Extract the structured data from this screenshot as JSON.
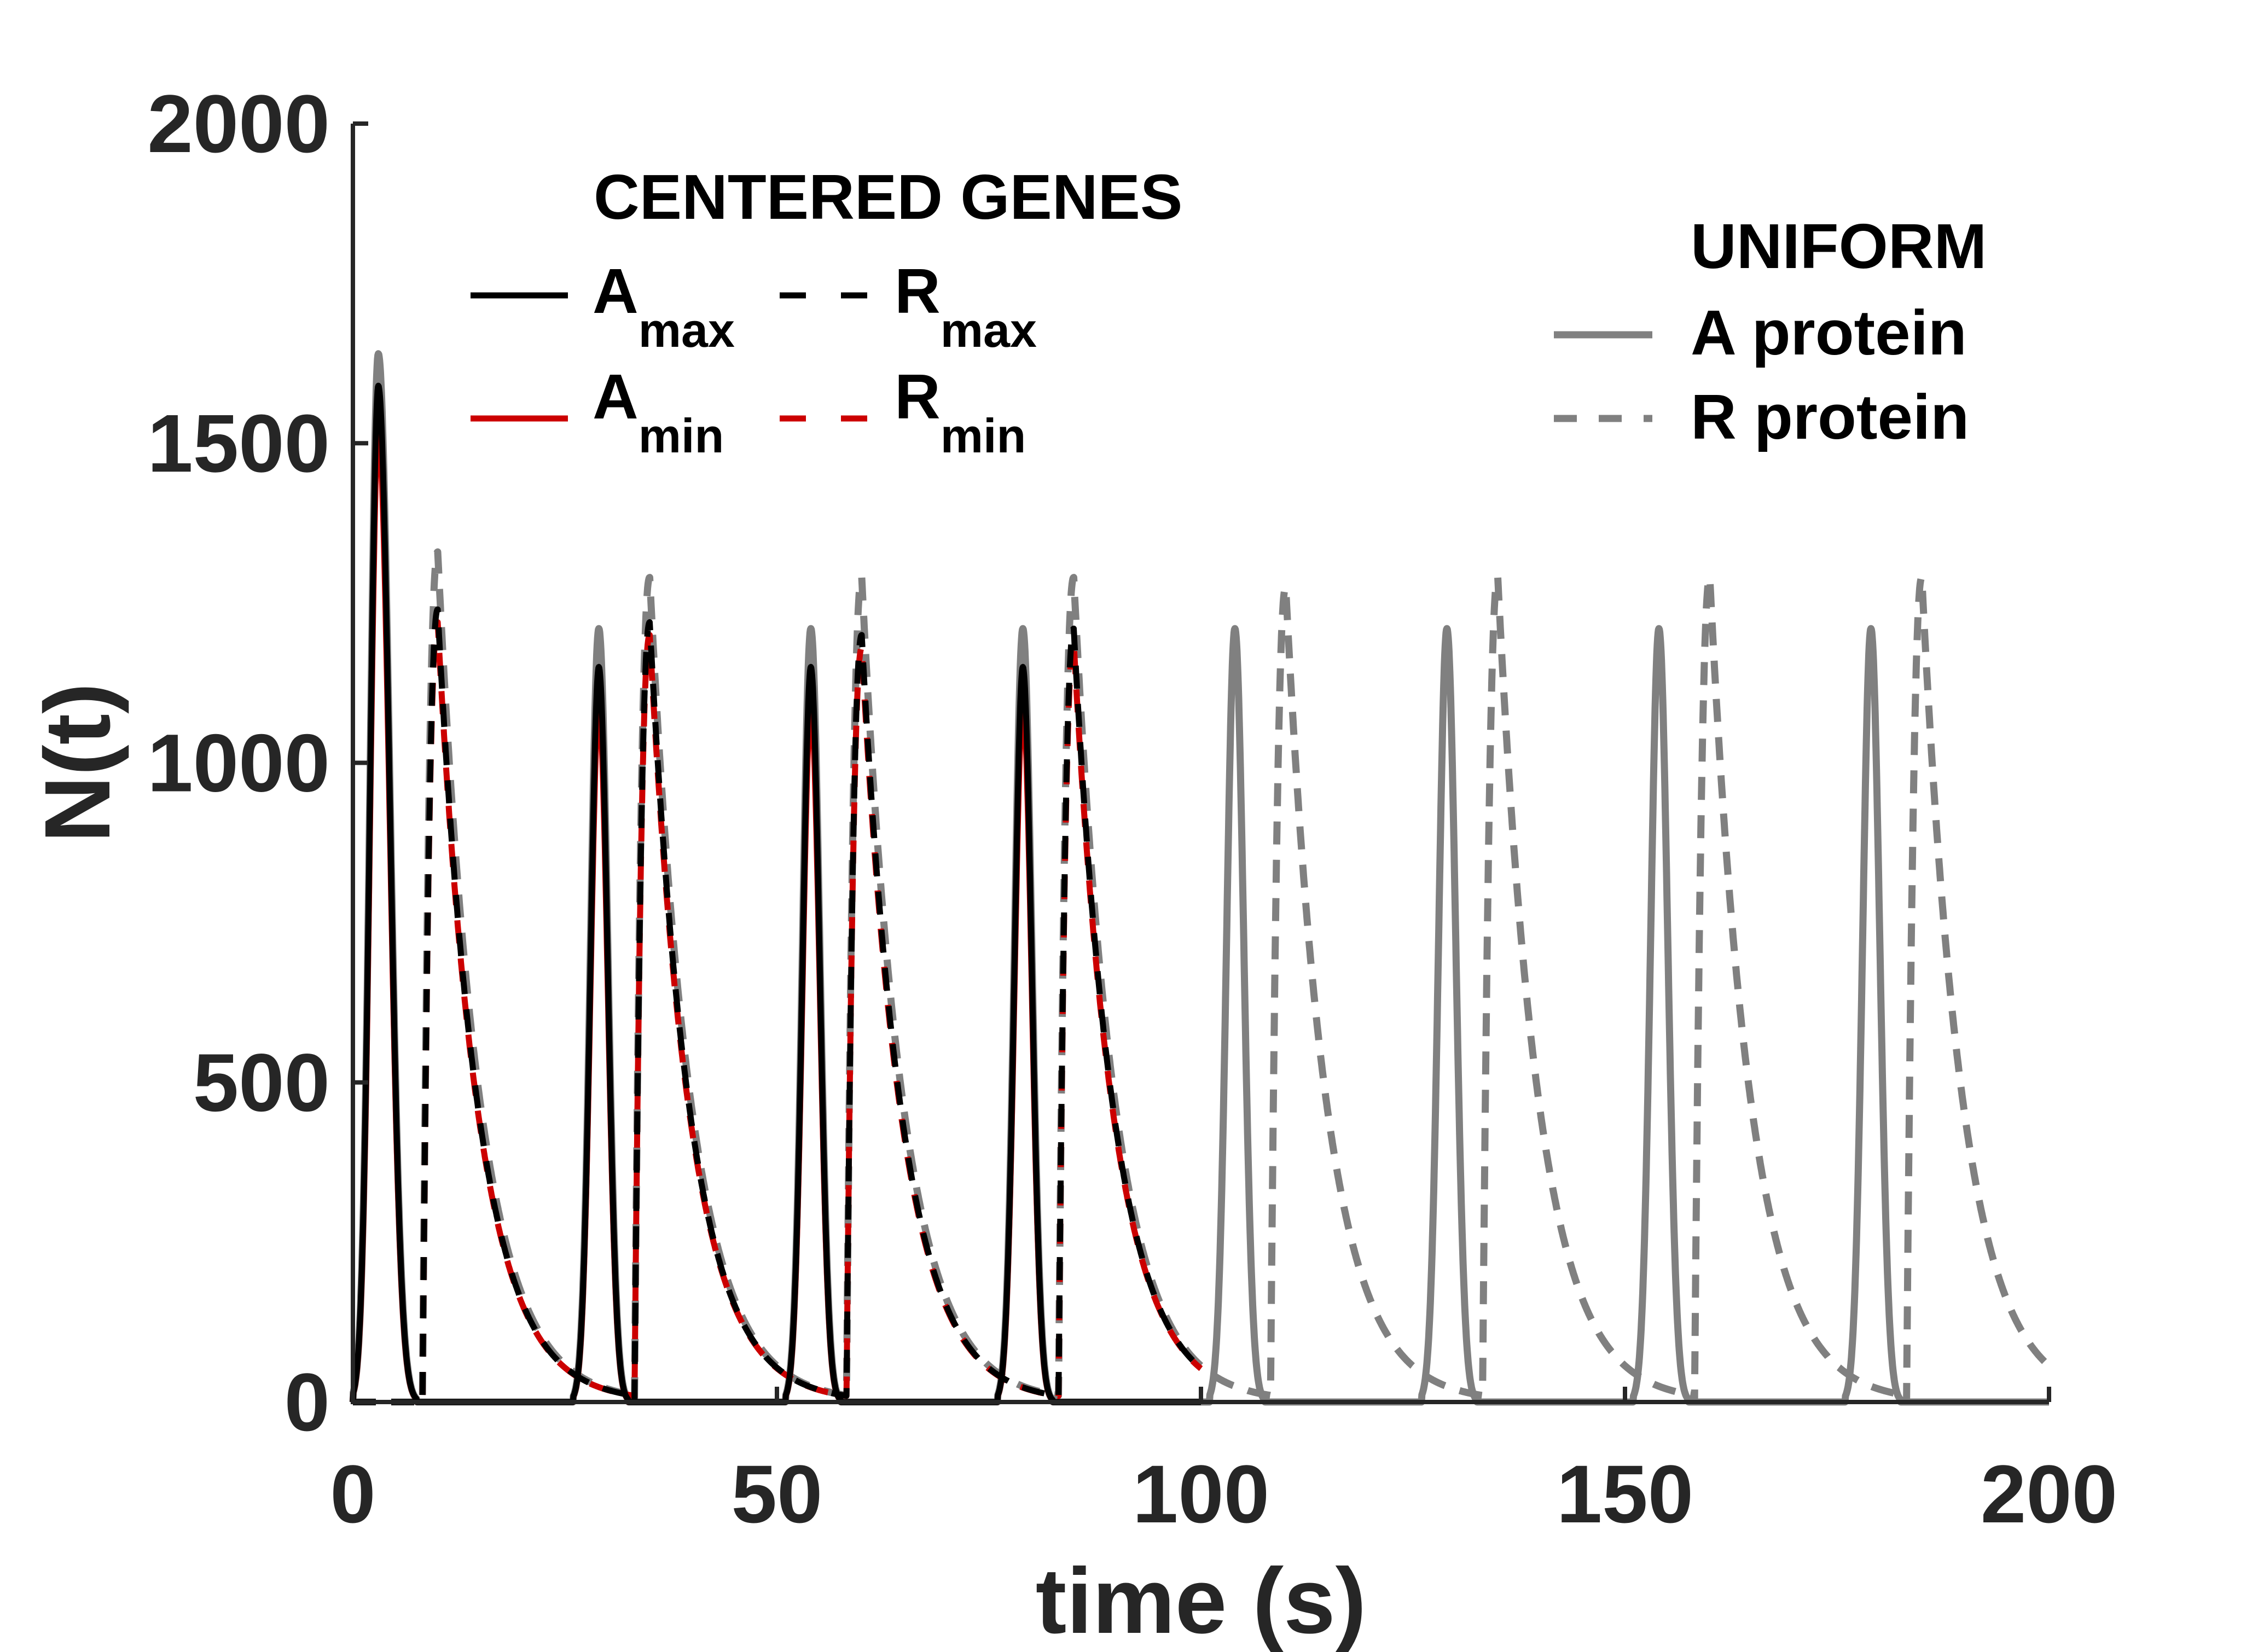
{
  "chart_data": {
    "type": "line",
    "xlabel": "time (s)",
    "ylabel": "N(t)",
    "xlim": [
      0,
      200
    ],
    "ylim": [
      0,
      2000
    ],
    "xticks": [
      "0",
      "50",
      "100",
      "150",
      "200"
    ],
    "yticks": [
      "0",
      "500",
      "1000",
      "1500",
      "2000"
    ],
    "grid": false,
    "legends": [
      {
        "title": "CENTERED GENES",
        "placement": "top-center",
        "entries": [
          {
            "base": "A",
            "sub": "max"
          },
          {
            "base": "R",
            "sub": "max"
          },
          {
            "base": "A",
            "sub": "min"
          },
          {
            "base": "R",
            "sub": "min"
          }
        ]
      },
      {
        "title": "UNIFORM",
        "placement": "top-right",
        "entries": [
          {
            "label": "A protein"
          },
          {
            "label": "R protein"
          }
        ]
      }
    ],
    "series": [
      {
        "name": "A protein",
        "group": "UNIFORM",
        "kind": "activator",
        "color": "#808080",
        "dash": "solid",
        "t_end": 200,
        "pulses": [
          {
            "peak_t": 3.0,
            "peak": 1640,
            "rise": 3.0,
            "fall": 4.5
          },
          {
            "peak_t": 29.0,
            "peak": 1210,
            "rise": 3.0,
            "fall": 3.5
          },
          {
            "peak_t": 54.0,
            "peak": 1210,
            "rise": 3.0,
            "fall": 3.5
          },
          {
            "peak_t": 79.0,
            "peak": 1210,
            "rise": 3.0,
            "fall": 3.5
          },
          {
            "peak_t": 104.0,
            "peak": 1210,
            "rise": 3.0,
            "fall": 3.5
          },
          {
            "peak_t": 129.0,
            "peak": 1210,
            "rise": 3.0,
            "fall": 3.5
          },
          {
            "peak_t": 154.0,
            "peak": 1210,
            "rise": 3.0,
            "fall": 3.5
          },
          {
            "peak_t": 179.0,
            "peak": 1210,
            "rise": 3.0,
            "fall": 3.5
          }
        ]
      },
      {
        "name": "R protein",
        "group": "UNIFORM",
        "kind": "repressor",
        "color": "#808080",
        "dash": "dashed",
        "t_end": 200,
        "decay_tau": 4.8,
        "next_rise": 0.8,
        "pulses": [
          {
            "peak_t": 10.0,
            "peak": 1330,
            "rise": 1.8
          },
          {
            "peak_t": 35.0,
            "peak": 1290,
            "rise": 1.8
          },
          {
            "peak_t": 60.0,
            "peak": 1290,
            "rise": 1.8
          },
          {
            "peak_t": 85.0,
            "peak": 1290,
            "rise": 1.8
          },
          {
            "peak_t": 110.0,
            "peak": 1275,
            "rise": 1.8
          },
          {
            "peak_t": 135.0,
            "peak": 1290,
            "rise": 1.8
          },
          {
            "peak_t": 160.0,
            "peak": 1290,
            "rise": 1.8
          },
          {
            "peak_t": 185.0,
            "peak": 1290,
            "rise": 1.8
          }
        ]
      },
      {
        "name": "A min",
        "group": "CENTERED GENES",
        "kind": "activator",
        "color": "#cc0000",
        "dash": "solid",
        "t_end": 100,
        "pulses": [
          {
            "peak_t": 3.0,
            "peak": 1520,
            "rise": 3.0,
            "fall": 4.5
          },
          {
            "peak_t": 29.0,
            "peak": 1090,
            "rise": 3.0,
            "fall": 3.5
          },
          {
            "peak_t": 54.0,
            "peak": 1090,
            "rise": 3.0,
            "fall": 3.5
          },
          {
            "peak_t": 79.0,
            "peak": 1090,
            "rise": 3.0,
            "fall": 3.5
          }
        ]
      },
      {
        "name": "R min",
        "group": "CENTERED GENES",
        "kind": "repressor",
        "color": "#cc0000",
        "dash": "dashed",
        "t_end": 100,
        "decay_tau": 4.8,
        "next_rise": 0.8,
        "pulses": [
          {
            "peak_t": 10.0,
            "peak": 1220,
            "rise": 1.8
          },
          {
            "peak_t": 35.0,
            "peak": 1200,
            "rise": 1.8
          },
          {
            "peak_t": 60.0,
            "peak": 1180,
            "rise": 1.8
          },
          {
            "peak_t": 85.0,
            "peak": 1190,
            "rise": 1.8
          }
        ]
      },
      {
        "name": "A max",
        "group": "CENTERED GENES",
        "kind": "activator",
        "color": "#000000",
        "dash": "solid",
        "t_end": 100,
        "pulses": [
          {
            "peak_t": 3.0,
            "peak": 1590,
            "rise": 3.0,
            "fall": 4.5
          },
          {
            "peak_t": 29.0,
            "peak": 1150,
            "rise": 3.0,
            "fall": 3.5
          },
          {
            "peak_t": 54.0,
            "peak": 1150,
            "rise": 3.0,
            "fall": 3.5
          },
          {
            "peak_t": 79.0,
            "peak": 1150,
            "rise": 3.0,
            "fall": 3.5
          }
        ]
      },
      {
        "name": "R max",
        "group": "CENTERED GENES",
        "kind": "repressor",
        "color": "#000000",
        "dash": "dashed",
        "t_end": 100,
        "decay_tau": 4.8,
        "next_rise": 0.8,
        "pulses": [
          {
            "peak_t": 10.0,
            "peak": 1240,
            "rise": 1.8
          },
          {
            "peak_t": 35.0,
            "peak": 1220,
            "rise": 1.8
          },
          {
            "peak_t": 60.0,
            "peak": 1200,
            "rise": 1.8
          },
          {
            "peak_t": 85.0,
            "peak": 1210,
            "rise": 1.8
          }
        ]
      }
    ]
  }
}
